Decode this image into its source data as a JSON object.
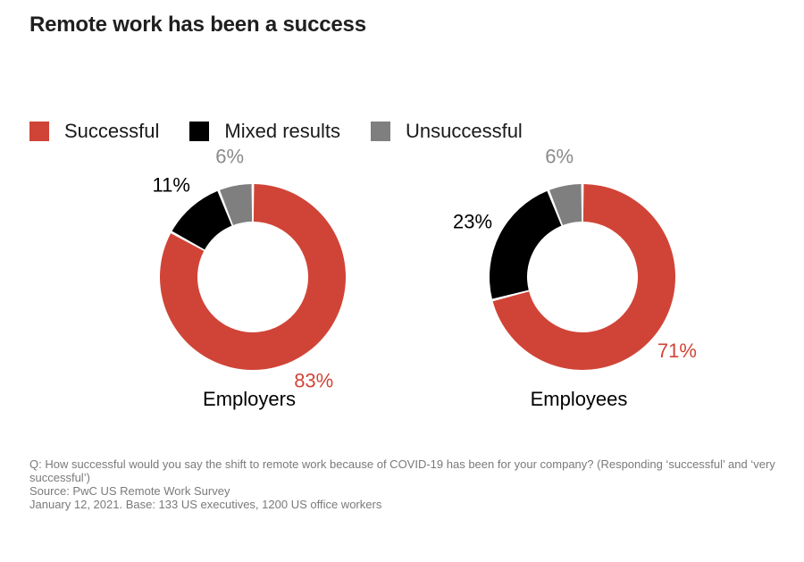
{
  "title": "Remote work has been a success",
  "chart_data": {
    "type": "pie",
    "variant": "donut",
    "title": "Remote work has been a success",
    "legend_position": "top-left",
    "series_names": [
      "Successful",
      "Mixed results",
      "Unsuccessful"
    ],
    "colors": {
      "Successful": "#d04437",
      "Mixed results": "#000000",
      "Unsuccessful": "#7f7f7f"
    },
    "charts": [
      {
        "label": "Employers",
        "slices": [
          {
            "name": "Successful",
            "value": 83,
            "label": "83%"
          },
          {
            "name": "Mixed results",
            "value": 11,
            "label": "11%"
          },
          {
            "name": "Unsuccessful",
            "value": 6,
            "label": "6%"
          }
        ]
      },
      {
        "label": "Employees",
        "slices": [
          {
            "name": "Successful",
            "value": 71,
            "label": "71%"
          },
          {
            "name": "Mixed results",
            "value": 23,
            "label": "23%"
          },
          {
            "name": "Unsuccessful",
            "value": 6,
            "label": "6%"
          }
        ]
      }
    ]
  },
  "footer": {
    "question": "Q: How successful would you say the shift to remote work because of COVID-19 has been for your company? (Responding ‘successful’ and ‘very successful’)",
    "source": "Source: PwC US Remote Work Survey",
    "base": "January 12, 2021. Base: 133 US executives, 1200 US office workers"
  }
}
